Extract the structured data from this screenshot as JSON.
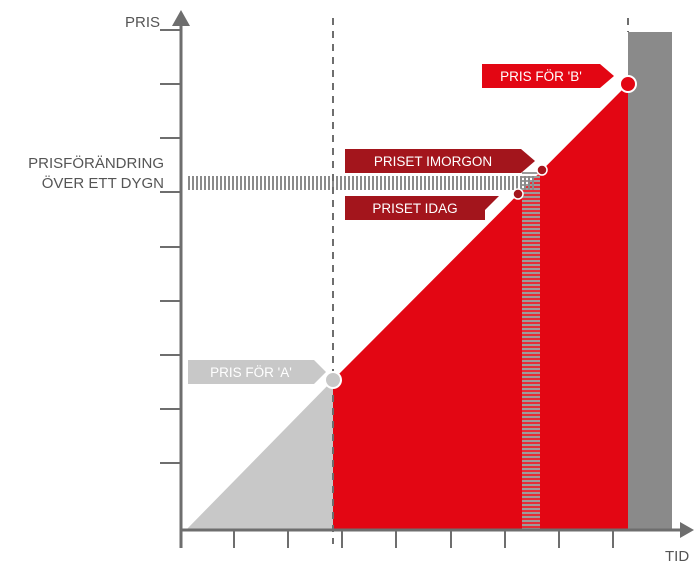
{
  "axes": {
    "y_label": "PRIS",
    "x_label": "TID"
  },
  "labels": {
    "price_change_line1": "PRISFÖRÄNDRING",
    "price_change_line2": "ÖVER ETT DYGN",
    "price_a": "PRIS FÖR 'A'",
    "price_b": "PRIS FÖR 'B'",
    "price_tomorrow": "PRISET IMORGON",
    "price_today": "PRISET IDAG"
  },
  "colors": {
    "axis": "#6e6e6e",
    "red": "#e30613",
    "dark_red": "#a3151c",
    "light_gray": "#c8c8c8",
    "dark_gray": "#8a8a8a"
  }
}
